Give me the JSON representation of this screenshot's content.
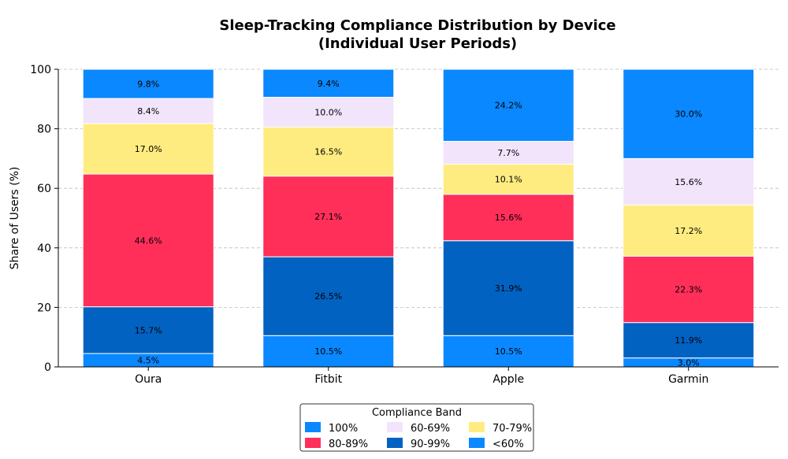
{
  "chart_data": {
    "type": "bar",
    "stacked": true,
    "title": "Sleep-Tracking Compliance Distribution by Device",
    "subtitle": "(Individual User Periods)",
    "xlabel": "",
    "ylabel": "Share of Users (%)",
    "ylim": [
      0,
      100
    ],
    "yticks": [
      0,
      20,
      40,
      60,
      80,
      100
    ],
    "grid": "horizontal dashed",
    "categories": [
      "Oura",
      "Fitbit",
      "Apple",
      "Garmin"
    ],
    "series": [
      {
        "name": "<60%",
        "color": "#0a88ff",
        "values": [
          4.5,
          10.5,
          10.5,
          3.0
        ]
      },
      {
        "name": "90-99%",
        "color": "#0262c1",
        "values": [
          15.7,
          26.5,
          31.9,
          11.9
        ]
      },
      {
        "name": "80-89%",
        "color": "#ff2f5a",
        "values": [
          44.6,
          27.1,
          15.6,
          22.3
        ]
      },
      {
        "name": "70-79%",
        "color": "#ffec80",
        "values": [
          17.0,
          16.5,
          10.1,
          17.2
        ]
      },
      {
        "name": "60-69%",
        "color": "#f1e4fb",
        "values": [
          8.4,
          10.0,
          7.7,
          15.6
        ]
      },
      {
        "name": "100%",
        "color": "#0a88ff",
        "values": [
          9.8,
          9.4,
          24.2,
          30.0
        ]
      }
    ],
    "legend": {
      "title": "Compliance Band",
      "placement": "bottom-center",
      "order": [
        "100%",
        "60-69%",
        "70-79%",
        "80-89%",
        "90-99%",
        "<60%"
      ]
    }
  }
}
